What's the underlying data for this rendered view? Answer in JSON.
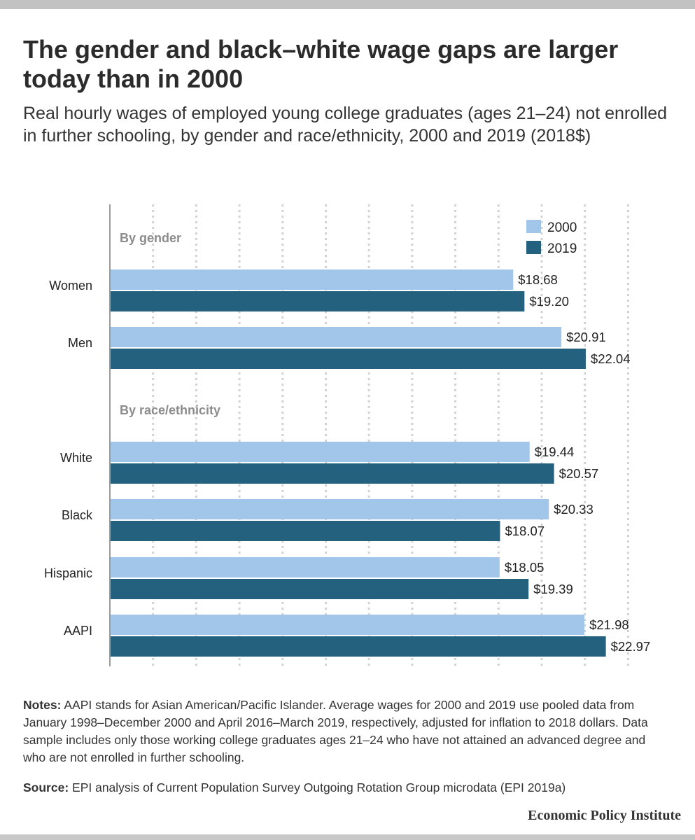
{
  "header": {
    "title": "The gender and black–white wage gaps are larger today than in 2000",
    "subtitle": "Real hourly wages of employed young college graduates (ages 21–24) not enrolled in further schooling, by gender and race/ethnicity, 2000 and 2019 (2018$)"
  },
  "footer": {
    "notes_label": "Notes:",
    "notes_text": " AAPI stands for Asian American/Pacific Islander. Average wages for 2000 and 2019 use pooled data from January 1998–December 2000 and April 2016–March 2019, respectively, adjusted for inflation to 2018 dollars. Data sample includes only those working college graduates ages 21–24 who have not attained an advanced degree and who are not enrolled in further schooling.",
    "source_label": "Source:",
    "source_text": " EPI analysis of Current Population Survey Outgoing Rotation Group microdata (EPI 2019a)",
    "brand": "Economic Policy Institute"
  },
  "chart_data": {
    "type": "bar",
    "orientation": "horizontal",
    "groups": [
      {
        "label": "By gender",
        "categories": [
          "Women",
          "Men"
        ]
      },
      {
        "label": "By race/ethnicity",
        "categories": [
          "White",
          "Black",
          "Hispanic",
          "AAPI"
        ]
      }
    ],
    "categories": [
      "Women",
      "Men",
      "White",
      "Black",
      "Hispanic",
      "AAPI"
    ],
    "series": [
      {
        "name": "2000",
        "color": "#a1c6ea",
        "values": [
          18.68,
          20.91,
          19.44,
          20.33,
          18.05,
          21.98
        ],
        "labels": [
          "$18.68",
          "$20.91",
          "$19.44",
          "$20.33",
          "$18.05",
          "$21.98"
        ]
      },
      {
        "name": "2019",
        "color": "#24617f",
        "values": [
          19.2,
          22.04,
          20.57,
          18.07,
          19.39,
          22.97
        ],
        "labels": [
          "$19.20",
          "$22.04",
          "$20.57",
          "$18.07",
          "$19.39",
          "$22.97"
        ]
      }
    ],
    "xlim": [
      0,
      25
    ],
    "grid": true,
    "legend": "top-right"
  }
}
